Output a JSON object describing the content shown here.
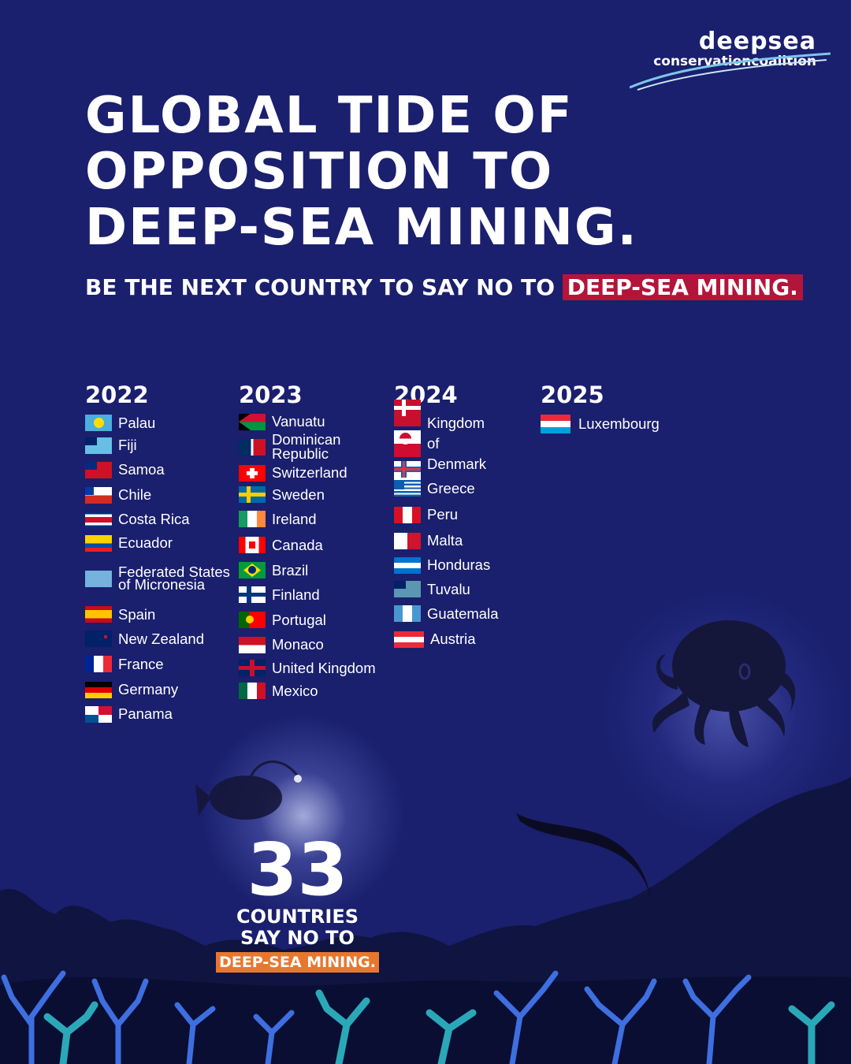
{
  "logo": {
    "line1": "deepsea",
    "line2": "conservationcoalition"
  },
  "title": "GLOBAL TIDE OF OPPOSITION TO DEEP-SEA MINING.",
  "subtitle": {
    "lead": "BE THE NEXT COUNTRY TO SAY NO TO ",
    "highlight": "DEEP-SEA MINING."
  },
  "colors": {
    "background": "#1a1f6e",
    "highlight_red": "#b3153a",
    "highlight_orange": "#e8772e"
  },
  "years": [
    {
      "year": "2022",
      "countries": [
        "Palau",
        "Fiji",
        "Samoa",
        "Chile",
        "Costa Rica",
        "Ecuador",
        "Federated States of Micronesia",
        "Spain",
        "New Zealand",
        "France",
        "Germany",
        "Panama"
      ]
    },
    {
      "year": "2023",
      "countries": [
        "Vanuatu",
        "Dominican Republic",
        "Switzerland",
        "Sweden",
        "Ireland",
        "Canada",
        "Brazil",
        "Finland",
        "Portugal",
        "Monaco",
        "United Kingdom",
        "Mexico"
      ]
    },
    {
      "year": "2024",
      "countries": [
        "Kingdom of Denmark",
        "Greece",
        "Peru",
        "Malta",
        "Honduras",
        "Tuvalu",
        "Guatemala",
        "Austria"
      ]
    },
    {
      "year": "2025",
      "countries": [
        "Luxembourg"
      ]
    }
  ],
  "counter": {
    "number": "33",
    "line1": "COUNTRIES",
    "line2": "SAY NO TO",
    "highlight": "DEEP-SEA MINING."
  },
  "illustrations": [
    "anglerfish-icon",
    "octopus-icon",
    "eel-icon",
    "coral-reef"
  ]
}
